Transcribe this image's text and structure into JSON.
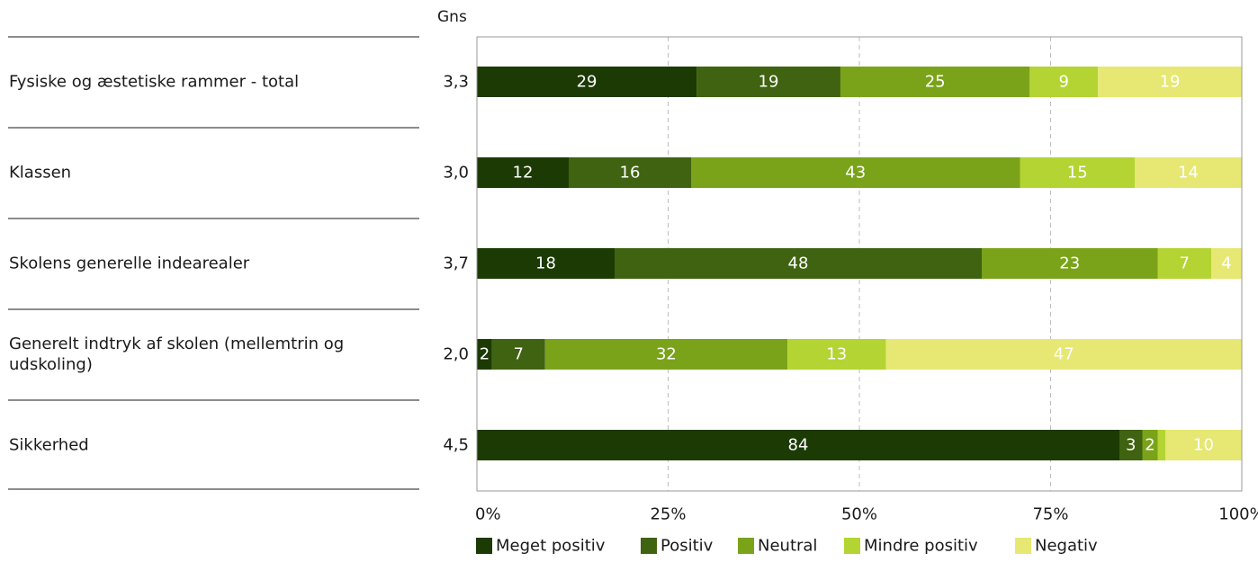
{
  "chart_data": {
    "type": "bar",
    "orientation": "horizontal",
    "stacked": true,
    "value_header": "Gns",
    "categories": [
      "Fysiske og æstetiske rammer - total",
      "Klassen",
      "Skolens generelle indearealer",
      "Generelt indtryk af skolen (mellemtrin og udskoling)",
      "Sikkerhed"
    ],
    "category_lines": [
      [
        "Fysiske og æstetiske rammer - total"
      ],
      [
        "Klassen"
      ],
      [
        "Skolens generelle indearealer"
      ],
      [
        "Generelt indtryk af skolen (mellemtrin og",
        "udskoling)"
      ],
      [
        "Sikkerhed"
      ]
    ],
    "averages": [
      "3,3",
      "3,0",
      "3,7",
      "2,0",
      "4,5"
    ],
    "series": [
      {
        "name": "Meget positiv",
        "color": "#1c3a04",
        "label_color": "#ffffff",
        "values": [
          29,
          12,
          18,
          2,
          84
        ]
      },
      {
        "name": "Positiv",
        "color": "#3f6310",
        "label_color": "#ffffff",
        "values": [
          19,
          16,
          48,
          7,
          3
        ]
      },
      {
        "name": "Neutral",
        "color": "#7aa31a",
        "label_color": "#ffffff",
        "values": [
          25,
          43,
          23,
          32,
          2
        ]
      },
      {
        "name": "Mindre positiv",
        "color": "#b4d433",
        "label_color": "#ffffff",
        "values": [
          9,
          15,
          7,
          13,
          1
        ]
      },
      {
        "name": "Negativ",
        "color": "#e6e873",
        "label_color": "#ffffff",
        "values": [
          19,
          14,
          4,
          47,
          10
        ]
      }
    ],
    "hidden_labels": [
      [
        4,
        3
      ]
    ],
    "xlim": [
      0,
      100
    ],
    "xticks": [
      0,
      25,
      50,
      75,
      100
    ],
    "xtick_labels": [
      "0%",
      "25%",
      "50%",
      "75%",
      "100%"
    ],
    "grid": "vertical dashed",
    "legend_position": "bottom"
  }
}
